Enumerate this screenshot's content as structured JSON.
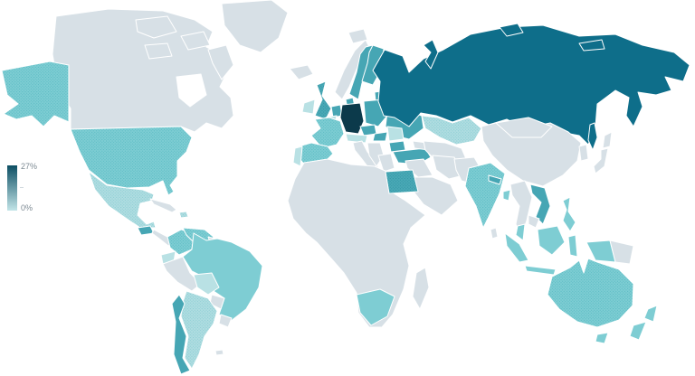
{
  "chart_data": {
    "type": "choropleth",
    "title": "",
    "description_visible": "World choropleth map, countries shaded from 0% (light) to 27% (dark)",
    "legend": {
      "max_label": "27%",
      "min_label": "0%",
      "position": "middle-left",
      "orientation": "vertical",
      "gradient_top": "#0d4f63",
      "gradient_bottom": "#c2e5e8"
    },
    "palette": {
      "none": {
        "color": "#d7e0e6"
      },
      "low": {
        "color": "#b9e1e4"
      },
      "low_dots": {
        "color": "#b0dde1",
        "dot_color": "#86ccd2"
      },
      "lowmid": {
        "color": "#7ecdd3"
      },
      "lowmid_dots": {
        "color": "#7ecdd3",
        "dot_color": "#55b8c1"
      },
      "mid": {
        "color": "#46a6b4"
      },
      "mid_dots": {
        "color": "#4aa9b6",
        "dot_color": "#2f93a3"
      },
      "high": {
        "color": "#0e6e8a"
      },
      "max": {
        "color": "#0c3a4b"
      }
    },
    "countries": {
      "greenland": {
        "name": "Greenland",
        "level": "none"
      },
      "canada": {
        "name": "Canada",
        "level": "none"
      },
      "usa": {
        "name": "United States",
        "level": "lowmid_dots"
      },
      "mexico": {
        "name": "Mexico",
        "level": "low_dots"
      },
      "guatemala": {
        "name": "Guatemala",
        "level": "mid"
      },
      "central_america": {
        "name": "Central America",
        "level": "none"
      },
      "cuba": {
        "name": "Cuba",
        "level": "none"
      },
      "dominican_republic": {
        "name": "Dominican Republic",
        "level": "low_dots"
      },
      "colombia": {
        "name": "Colombia",
        "level": "lowmid_dots"
      },
      "venezuela": {
        "name": "Venezuela",
        "level": "lowmid_dots"
      },
      "guyanas": {
        "name": "Guyana / Suriname",
        "level": "none"
      },
      "ecuador": {
        "name": "Ecuador",
        "level": "low"
      },
      "peru": {
        "name": "Peru",
        "level": "none"
      },
      "brazil": {
        "name": "Brazil",
        "level": "lowmid"
      },
      "bolivia": {
        "name": "Bolivia",
        "level": "low"
      },
      "paraguay": {
        "name": "Paraguay",
        "level": "none"
      },
      "uruguay": {
        "name": "Uruguay",
        "level": "none"
      },
      "argentina": {
        "name": "Argentina",
        "level": "low_dots"
      },
      "chile": {
        "name": "Chile",
        "level": "mid"
      },
      "falkland_islands": {
        "name": "Falkland Islands",
        "level": "none"
      },
      "iceland": {
        "name": "Iceland",
        "level": "none"
      },
      "ireland": {
        "name": "Ireland",
        "level": "low"
      },
      "united_kingdom": {
        "name": "United Kingdom",
        "level": "mid_dots"
      },
      "portugal": {
        "name": "Portugal",
        "level": "low"
      },
      "spain": {
        "name": "Spain",
        "level": "lowmid_dots"
      },
      "france": {
        "name": "France",
        "level": "lowmid_dots"
      },
      "norway": {
        "name": "Norway",
        "level": "none"
      },
      "sweden": {
        "name": "Sweden",
        "level": "mid"
      },
      "finland": {
        "name": "Finland",
        "level": "mid"
      },
      "denmark": {
        "name": "Denmark",
        "level": "mid"
      },
      "baltics": {
        "name": "Baltic states",
        "level": "mid"
      },
      "netherlands": {
        "name": "Netherlands",
        "level": "mid"
      },
      "belgium": {
        "name": "Belgium",
        "level": "low"
      },
      "germany": {
        "name": "Germany",
        "level": "max"
      },
      "poland": {
        "name": "Poland",
        "level": "mid"
      },
      "belarus": {
        "name": "Belarus",
        "level": "low"
      },
      "ukraine": {
        "name": "Ukraine",
        "level": "mid"
      },
      "czechia": {
        "name": "Czechia",
        "level": "mid"
      },
      "austria_switzerland": {
        "name": "Austria / Switzerland",
        "level": "low"
      },
      "hungary": {
        "name": "Hungary",
        "level": "mid"
      },
      "italy": {
        "name": "Italy",
        "level": "none"
      },
      "balkans": {
        "name": "Balkans",
        "level": "none"
      },
      "romania": {
        "name": "Romania",
        "level": "low"
      },
      "bulgaria": {
        "name": "Bulgaria",
        "level": "mid"
      },
      "greece": {
        "name": "Greece",
        "level": "none"
      },
      "turkey": {
        "name": "Turkey",
        "level": "mid"
      },
      "russia": {
        "name": "Russia",
        "level": "high"
      },
      "svalbard": {
        "name": "Svalbard",
        "level": "none"
      },
      "kazakhstan": {
        "name": "Kazakhstan",
        "level": "low_dots"
      },
      "central_asia": {
        "name": "Central Asia",
        "level": "none"
      },
      "caucasus": {
        "name": "Caucasus",
        "level": "none"
      },
      "middle_east": {
        "name": "Iraq / Levant",
        "level": "none"
      },
      "iran": {
        "name": "Iran",
        "level": "none"
      },
      "saudi_arabia": {
        "name": "Saudi Arabia",
        "level": "none"
      },
      "africa": {
        "name": "Africa (other)",
        "level": "none"
      },
      "egypt": {
        "name": "Egypt",
        "level": "mid_dots"
      },
      "south_africa": {
        "name": "South Africa",
        "level": "lowmid"
      },
      "madagascar": {
        "name": "Madagascar",
        "level": "none"
      },
      "china": {
        "name": "China",
        "level": "none"
      },
      "mongolia": {
        "name": "Mongolia",
        "level": "none"
      },
      "japan": {
        "name": "Japan",
        "level": "none"
      },
      "south_korea": {
        "name": "South Korea",
        "level": "none"
      },
      "india": {
        "name": "India",
        "level": "lowmid_dots"
      },
      "pakistan_afghanistan": {
        "name": "Pakistan / Afghanistan",
        "level": "none"
      },
      "nepal": {
        "name": "Nepal",
        "level": "mid"
      },
      "bangladesh": {
        "name": "Bangladesh",
        "level": "lowmid"
      },
      "sri_lanka": {
        "name": "Sri Lanka",
        "level": "none"
      },
      "myanmar_thailand": {
        "name": "Myanmar / Thailand",
        "level": "none"
      },
      "vietnam": {
        "name": "Vietnam",
        "level": "mid"
      },
      "cambodia": {
        "name": "Cambodia",
        "level": "none"
      },
      "malaysia": {
        "name": "Malaysia",
        "level": "lowmid"
      },
      "indonesia": {
        "name": "Indonesia",
        "level": "lowmid"
      },
      "philippines": {
        "name": "Philippines",
        "level": "lowmid"
      },
      "papua_new_guinea": {
        "name": "Papua New Guinea",
        "level": "none"
      },
      "australia": {
        "name": "Australia",
        "level": "lowmid_dots"
      },
      "tasmania": {
        "name": "Tasmania",
        "level": "lowmid"
      },
      "new_zealand": {
        "name": "New Zealand",
        "level": "lowmid"
      }
    }
  }
}
